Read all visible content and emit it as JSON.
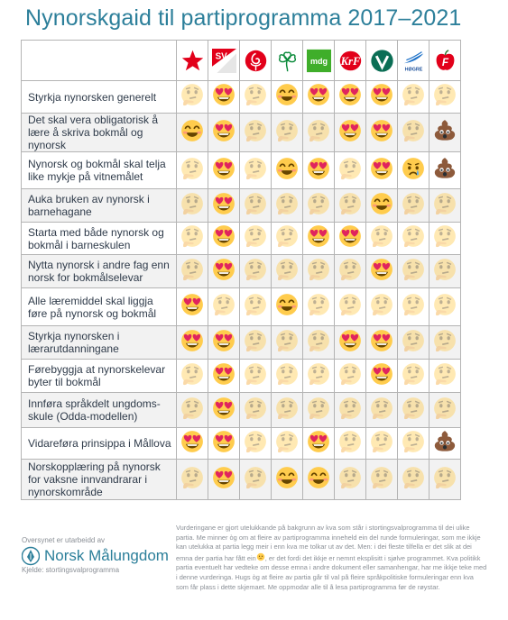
{
  "title": "Nynorskgaid til partiprogramma 2017–2021",
  "parties": [
    {
      "icon": "rodt-star-icon",
      "label": ""
    },
    {
      "icon": "sv-logo-icon",
      "label": "SV"
    },
    {
      "icon": "ap-rose-icon",
      "label": ""
    },
    {
      "icon": "sp-clover-icon",
      "label": ""
    },
    {
      "icon": "mdg-logo-icon",
      "label": "mdg"
    },
    {
      "icon": "krf-logo-icon",
      "label": "KrF"
    },
    {
      "icon": "venstre-logo-icon",
      "label": "V"
    },
    {
      "icon": "hoyre-logo-icon",
      "label": "HØGRE"
    },
    {
      "icon": "frp-apple-icon",
      "label": "F"
    }
  ],
  "emoji_legend": {
    "L": "heart-eyes-icon",
    "S": "smiley-icon",
    "T": "thinking-face-icon",
    "C": "crying-face-icon",
    "P": "poop-icon"
  },
  "rows": [
    {
      "label": "Styrkja nynorsken generelt",
      "marks": [
        "T",
        "L",
        "T",
        "S",
        "L",
        "L",
        "L",
        "T",
        "T"
      ]
    },
    {
      "label": "Det skal vera obligatorisk å lære å skriva bokmål og nynorsk",
      "marks": [
        "S",
        "L",
        "T",
        "T",
        "T",
        "L",
        "L",
        "T",
        "P"
      ]
    },
    {
      "label": "Nynorsk og bokmål skal telja like mykje på vitnemålet",
      "marks": [
        "T",
        "L",
        "T",
        "S",
        "L",
        "T",
        "L",
        "C",
        "P"
      ]
    },
    {
      "label": "Auka bruken av nynorsk i barnehagane",
      "marks": [
        "T",
        "L",
        "T",
        "T",
        "T",
        "T",
        "S",
        "T",
        "T"
      ]
    },
    {
      "label": "Starta med både nynorsk og bokmål i barneskulen",
      "marks": [
        "T",
        "L",
        "T",
        "T",
        "L",
        "L",
        "T",
        "T",
        "T"
      ]
    },
    {
      "label": "Nytta nynorsk i andre fag enn norsk for bokmålselevar",
      "marks": [
        "T",
        "L",
        "T",
        "T",
        "T",
        "T",
        "L",
        "T",
        "T"
      ]
    },
    {
      "label": "Alle læremiddel skal liggja føre på nynorsk og bokmål",
      "marks": [
        "L",
        "T",
        "T",
        "S",
        "T",
        "T",
        "T",
        "T",
        "T"
      ]
    },
    {
      "label": "Styrkja nynorsken i lærarutdanningane",
      "marks": [
        "L",
        "L",
        "T",
        "T",
        "T",
        "L",
        "L",
        "T",
        "T"
      ]
    },
    {
      "label": "Førebyggja at nynorskelevar byter til bokmål",
      "marks": [
        "T",
        "L",
        "T",
        "T",
        "T",
        "T",
        "L",
        "T",
        "T"
      ]
    },
    {
      "label": "Innføra språkdelt ungdoms-skule (Odda-modellen)",
      "marks": [
        "T",
        "L",
        "T",
        "T",
        "T",
        "T",
        "T",
        "T",
        "T"
      ]
    },
    {
      "label": "Vidareføra prinsippa i Mållova",
      "marks": [
        "L",
        "L",
        "T",
        "T",
        "L",
        "T",
        "T",
        "T",
        "P"
      ]
    },
    {
      "label": "Norskopplæring på nynorsk for vaksne innvandrarar i nynorskområde",
      "marks": [
        "T",
        "L",
        "T",
        "S",
        "S",
        "T",
        "T",
        "T",
        "T"
      ]
    }
  ],
  "footer": {
    "credit": "Oversynet er utarbeidd av",
    "org": "Norsk Målungdom",
    "source": "Kjelde: stortingsvalprogramma",
    "note_before": "Vurderingane er gjort utelukkande på bakgrunn av kva som står i stortingsvalprogramma til dei ulike partia. Me minner òg om at fleire av partiprogramma inneheld ein del runde formuleringar, som me ikkje kan utelukka at partia legg meir i enn kva me tolkar ut av det. Men: i dei fleste tilfella er det slik at dei emna der partia har fått ein",
    "note_after": ", er det fordi det ikkje er nemnt eksplisitt i sjølve programmet. Kva politikk partia eventuelt har vedteke om desse emna i andre dokument eller samanhengar, har me ikkje teke med i denne vurderinga. Hugs òg at fleire av partia går til val på fleire språkpolitiske formuleringar enn kva som får plass i dette skjemaet. Me oppmodar alle til å lesa partiprogramma før de røystar."
  }
}
